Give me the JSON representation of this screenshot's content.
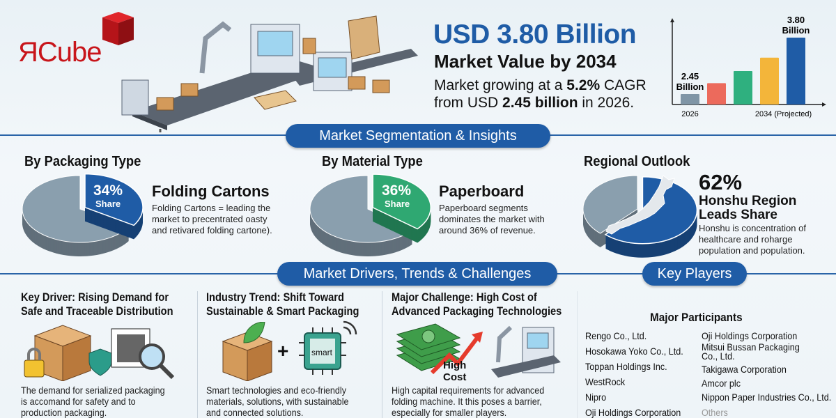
{
  "logo": {
    "text": "ЯCube",
    "brand_color": "#c8151b"
  },
  "hero": {
    "headline": "USD 3.80 Billion",
    "subheadline": "Market Value by 2034",
    "line1_pre": "Market growing at a ",
    "line1_bold": "5.2%",
    "line1_post": " CAGR",
    "line2_pre": "from USD ",
    "line2_bold": "2.45 billion",
    "line2_post": " in 2026.",
    "accent": "#1f5ca6"
  },
  "chart_data": [
    {
      "type": "bar",
      "categories": [
        "2026",
        "",
        "",
        "",
        "2034 (Projected)"
      ],
      "values": [
        2.45,
        2.71,
        3.0,
        3.32,
        3.8
      ],
      "data_labels": [
        "2.45 Billion",
        "",
        "",
        "",
        "3.80 Billion"
      ],
      "label_top": [
        "2.45",
        "",
        "",
        "",
        "3.80"
      ],
      "label_bottom": [
        "Billion",
        "",
        "",
        "",
        "Billion"
      ],
      "colors": [
        "#7f95a6",
        "#ec6a5c",
        "#2fb07f",
        "#f3b53a",
        "#1f5ca6"
      ],
      "ylim": [
        2.2,
        3.9
      ],
      "grid": false
    },
    {
      "type": "pie",
      "title": "By Packaging Type",
      "highlight": {
        "label": "Folding Cartons",
        "value": 34
      },
      "colors": [
        "#1f5ca6",
        "#8a9fae"
      ]
    },
    {
      "type": "pie",
      "title": "By Material Type",
      "highlight": {
        "label": "Paperboard",
        "value": 36
      },
      "colors": [
        "#2fa872",
        "#8a9fae"
      ]
    },
    {
      "type": "pie",
      "title": "Regional Outlook",
      "highlight": {
        "label": "Honshu Region",
        "value": 62
      },
      "colors": [
        "#1f5ca6",
        "#8a9fae"
      ]
    }
  ],
  "segmentation": {
    "banner": "Market Segmentation & Insights",
    "packaging": {
      "title": "By Packaging Type",
      "pct": "34%",
      "share": "Share",
      "name": "Folding Cartons",
      "desc": [
        "Folding Cartons = leading the",
        "market to precentrated oasty",
        "and retivared folding cartone)."
      ]
    },
    "material": {
      "title": "By Material Type",
      "pct": "36%",
      "share": "Share",
      "name": "Paperboard",
      "desc": [
        "Paperboard segments",
        "dominates the market with",
        "around 36% of revenue."
      ]
    },
    "regional": {
      "title": "Regional Outlook",
      "pct": "62%",
      "name1": "Honshu Region",
      "name2": "Leads Share",
      "desc": [
        "Honshu is concentration of",
        "healthcare and roharge",
        "population and population."
      ]
    }
  },
  "drivers": {
    "banner": "Market Drivers, Trends & Challenges",
    "columns": [
      {
        "title": [
          "Key Driver: Rising Demand for",
          "Safe and Traceable Distribution"
        ],
        "desc": [
          "The demand for serialized packaging",
          "is accomand for safety and to",
          "production packaging."
        ]
      },
      {
        "title": [
          "Industry Trend: Shift Toward",
          "Sustainable & Smart Packaging"
        ],
        "chip_label": "smart",
        "desc": [
          "Smart technologies and eco-friendly",
          "materials, solutions, with sustainable",
          "and connected solutions."
        ]
      },
      {
        "title": [
          "Major Challenge: High Cost of",
          "Advanced Packaging Technologies"
        ],
        "cost_label": [
          "High",
          "Cost"
        ],
        "desc": [
          "High capital requirements for advanced",
          "folding machine. It this poses a barrier,",
          "especially for smaller players."
        ]
      }
    ]
  },
  "players": {
    "banner": "Key Players",
    "title": "Major Participants",
    "col1": [
      "Rengo Co., Ltd.",
      "Hosokawa Yoko Co., Ltd.",
      "Toppan Holdings Inc.",
      "WestRock",
      "Nipro",
      "Oji Holdings Corporation"
    ],
    "col2": [
      "Oji Holdings Corporation",
      "Mitsui Bussan Packaging",
      "Co., Ltd.",
      "Takigawa Corporation",
      "Amcor plc",
      "Nippon Paper Industries Co., Ltd.",
      "Others"
    ]
  }
}
